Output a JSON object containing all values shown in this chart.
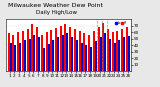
{
  "title": "Milwaukee Weather Dew Point",
  "subtitle": "Daily High/Low",
  "high_values": [
    58,
    55,
    60,
    62,
    65,
    72,
    68,
    55,
    60,
    64,
    67,
    70,
    72,
    68,
    65,
    62,
    58,
    55,
    62,
    68,
    74,
    65,
    60,
    62,
    65,
    68
  ],
  "low_values": [
    44,
    40,
    44,
    48,
    50,
    55,
    52,
    36,
    42,
    48,
    52,
    55,
    58,
    52,
    48,
    44,
    40,
    38,
    46,
    52,
    58,
    50,
    44,
    48,
    52,
    54
  ],
  "high_color": "#FF0000",
  "low_color": "#0000CC",
  "background_color": "#E8E8E8",
  "plot_bg_color": "#FFFFFF",
  "ylim": [
    0,
    80
  ],
  "bar_width": 0.42,
  "yticks": [
    10,
    20,
    30,
    40,
    50,
    60,
    70
  ],
  "title_fontsize": 4.5,
  "tick_fontsize": 3.0,
  "legend_dot_blue": "#0000FF",
  "legend_dot_red": "#FF0000"
}
